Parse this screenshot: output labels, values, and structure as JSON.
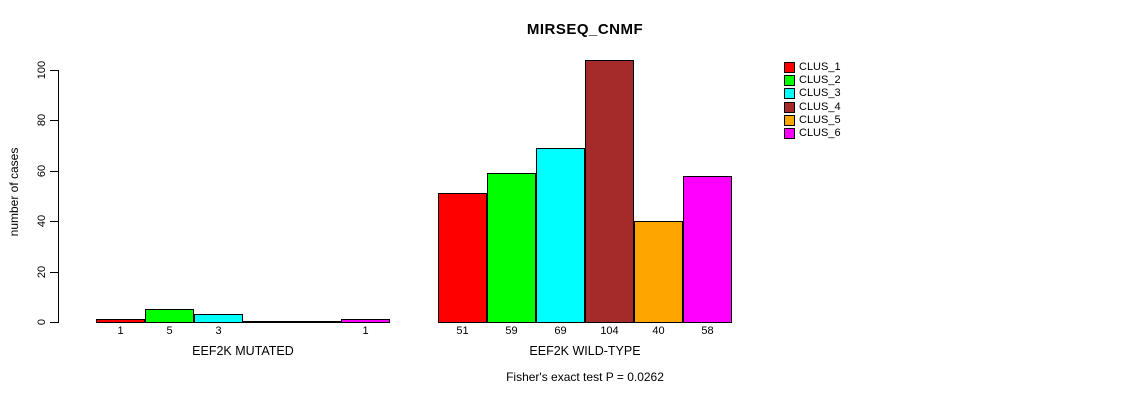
{
  "chart_data": {
    "type": "bar",
    "title": "MIRSEQ_CNMF",
    "ylabel": "number of cases",
    "ylim": [
      0,
      100
    ],
    "yticks": [
      0,
      20,
      40,
      60,
      80,
      100
    ],
    "grid": false,
    "legend_position": "right",
    "series": [
      {
        "name": "CLUS_1",
        "color": "#ff0000"
      },
      {
        "name": "CLUS_2",
        "color": "#00ff00"
      },
      {
        "name": "CLUS_3",
        "color": "#00ffff"
      },
      {
        "name": "CLUS_4",
        "color": "#a52a2a"
      },
      {
        "name": "CLUS_5",
        "color": "#ffa500"
      },
      {
        "name": "CLUS_6",
        "color": "#ff00ff"
      }
    ],
    "groups": [
      {
        "label": "EEF2K MUTATED",
        "values": [
          1,
          5,
          3,
          0,
          0,
          1
        ],
        "bar_labels": [
          "1",
          "5",
          "3",
          "",
          "",
          "1"
        ]
      },
      {
        "label": "EEF2K WILD-TYPE",
        "values": [
          51,
          59,
          69,
          104,
          40,
          58
        ],
        "bar_labels": [
          "51",
          "59",
          "69",
          "104",
          "40",
          "58"
        ]
      }
    ],
    "annotation": "Fisher's exact test P = 0.0262"
  }
}
